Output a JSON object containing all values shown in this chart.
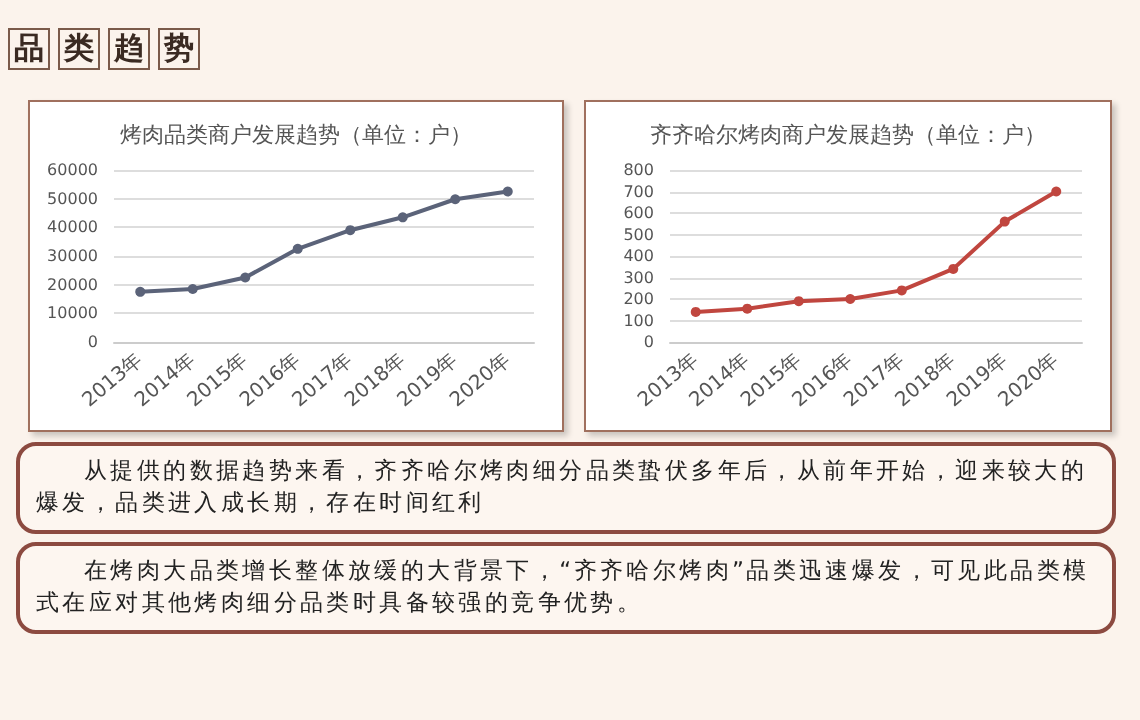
{
  "chart_data": [
    {
      "type": "line",
      "title": "烤肉品类商户发展趋势（单位：户）",
      "categories": [
        "2013年",
        "2014年",
        "2015年",
        "2016年",
        "2017年",
        "2018年",
        "2019年",
        "2020年"
      ],
      "series": [
        {
          "color": "#5b6379",
          "values": [
            17500,
            18500,
            22500,
            32500,
            39000,
            43500,
            49800,
            52500
          ]
        }
      ],
      "ylim": [
        0,
        60000
      ],
      "yticks": [
        0,
        10000,
        20000,
        30000,
        40000,
        50000,
        60000
      ],
      "grid": "y",
      "marker": "circle",
      "line_style": "solid"
    },
    {
      "type": "line",
      "title": "齐齐哈尔烤肉商户发展趋势（单位：户）",
      "categories": [
        "2013年",
        "2014年",
        "2015年",
        "2016年",
        "2017年",
        "2018年",
        "2019年",
        "2020年"
      ],
      "series": [
        {
          "color": "#c0463f",
          "values": [
            140,
            155,
            190,
            200,
            240,
            340,
            560,
            700
          ]
        }
      ],
      "ylim": [
        0,
        800
      ],
      "yticks": [
        0,
        100,
        200,
        300,
        400,
        500,
        600,
        700,
        800
      ],
      "grid": "y",
      "marker": "circle",
      "line_style": "solid"
    },
    {
      "type": "other",
      "title": "品类趋势",
      "annotations": [
        "从提供的数据趋势来看，齐齐哈尔烤肉细分品类蛰伏多年后，从前年开始，迎来较大的爆发，品类进入成长期，存在时间红利",
        "在烤肉大品类增长整体放缓的大背景下，“齐齐哈尔烤肉”品类迅速爆发，可见此品类模式在应对其他烤肉细分品类时具备较强的竞争优势。"
      ]
    }
  ]
}
